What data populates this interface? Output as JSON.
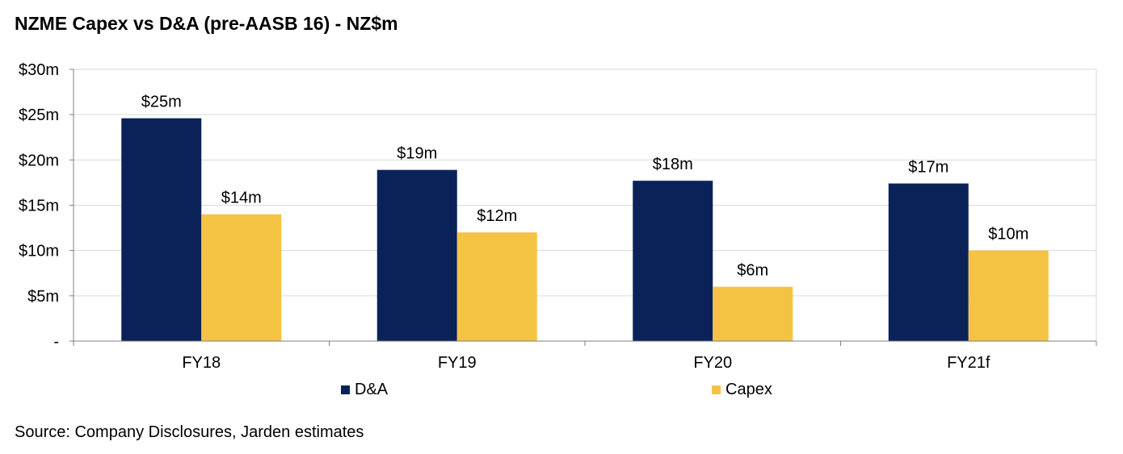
{
  "page": {
    "title": "NZME Capex vs D&A (pre-AASB 16) - NZ$m",
    "source": "Source: Company Disclosures, Jarden estimates"
  },
  "chart_data": {
    "type": "bar",
    "title": "NZME Capex vs D&A (pre-AASB 16) - NZ$m",
    "xlabel": "",
    "ylabel": "",
    "categories": [
      "FY18",
      "FY19",
      "FY20",
      "FY21f"
    ],
    "series": [
      {
        "name": "D&A",
        "color": "#0b2259",
        "values": [
          24.6,
          18.9,
          17.7,
          17.4
        ],
        "labels": [
          "$25m",
          "$19m",
          "$18m",
          "$17m"
        ]
      },
      {
        "name": "Capex",
        "color": "#f5c344",
        "values": [
          14.0,
          12.0,
          6.0,
          10.0
        ],
        "labels": [
          "$14m",
          "$12m",
          "$6m",
          "$10m"
        ]
      }
    ],
    "ylim": [
      0,
      30
    ],
    "yticks": [
      0,
      5,
      10,
      15,
      20,
      25,
      30
    ],
    "ytick_labels": [
      "-",
      "$5m",
      "$10m",
      "$15m",
      "$20m",
      "$25m",
      "$30m"
    ],
    "grid": true,
    "legend_position": "bottom"
  }
}
